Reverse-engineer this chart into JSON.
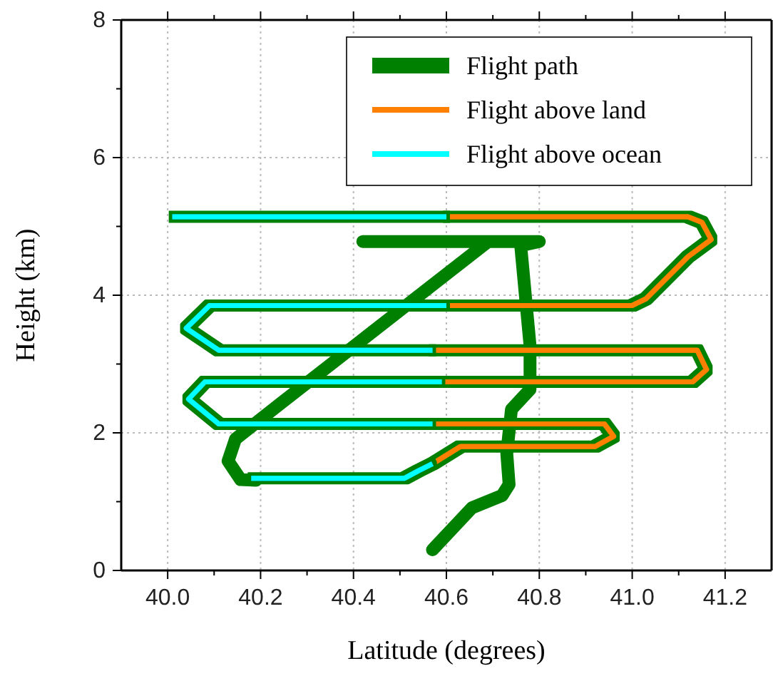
{
  "chart_data": {
    "type": "line",
    "xlabel": "Latitude (degrees)",
    "ylabel": "Height (km)",
    "xlim": [
      39.9,
      41.3
    ],
    "ylim": [
      0,
      8
    ],
    "xticks": [
      {
        "value": 40.0,
        "label": "40.0"
      },
      {
        "value": 40.1,
        "label": null
      },
      {
        "value": 40.2,
        "label": "40.2"
      },
      {
        "value": 40.3,
        "label": null
      },
      {
        "value": 40.4,
        "label": "40.4"
      },
      {
        "value": 40.5,
        "label": null
      },
      {
        "value": 40.6,
        "label": "40.6"
      },
      {
        "value": 40.7,
        "label": null
      },
      {
        "value": 40.8,
        "label": "40.8"
      },
      {
        "value": 40.9,
        "label": null
      },
      {
        "value": 41.0,
        "label": "41.0"
      },
      {
        "value": 41.1,
        "label": null
      },
      {
        "value": 41.2,
        "label": "41.2"
      }
    ],
    "yticks": [
      0,
      {
        "value": 1,
        "label": null
      },
      2,
      {
        "value": 3,
        "label": null
      },
      4,
      {
        "value": 5,
        "label": null
      },
      6,
      {
        "value": 7,
        "label": null
      },
      8
    ],
    "grid": true,
    "legend": "top right",
    "marker": "none",
    "line_style": "solid",
    "series": [
      {
        "name": "Flight path",
        "color": "#008000",
        "x": [
          40.57,
          40.655,
          40.72,
          40.735,
          40.73,
          40.74,
          40.78,
          40.78,
          40.76,
          40.8,
          40.42,
          null,
          40.69,
          40.24,
          40.146,
          40.13,
          40.157,
          40.19
        ],
        "values": [
          0.3,
          0.91,
          1.09,
          1.25,
          1.7,
          2.34,
          2.63,
          3.27,
          4.72,
          4.78,
          4.78,
          null,
          4.78,
          2.41,
          1.91,
          1.59,
          1.32,
          1.31
        ]
      },
      {
        "name": "Flight above land",
        "color": "#ff8000",
        "x": [
          40.57,
          40.63,
          40.92,
          40.96,
          40.94,
          40.57,
          null,
          40.59,
          41.13,
          41.16,
          41.14,
          40.57,
          null,
          40.6,
          41.0,
          41.03,
          41.12,
          41.17,
          41.15,
          41.12,
          40.6
        ],
        "values": [
          1.55,
          1.8,
          1.8,
          1.95,
          2.13,
          2.13,
          null,
          2.74,
          2.74,
          2.92,
          3.2,
          3.2,
          null,
          3.85,
          3.85,
          3.95,
          4.56,
          4.81,
          5.06,
          5.14,
          5.14
        ]
      },
      {
        "name": "Flight above ocean",
        "color": "#00ffff",
        "x": [
          40.18,
          40.51,
          40.54,
          40.57,
          null,
          40.57,
          40.11,
          40.045,
          40.08,
          40.59,
          null,
          40.57,
          40.11,
          40.04,
          40.09,
          40.6,
          null,
          40.6,
          40.01
        ],
        "values": [
          1.34,
          1.34,
          1.45,
          1.55,
          null,
          2.13,
          2.13,
          2.49,
          2.74,
          2.74,
          null,
          3.2,
          3.2,
          3.52,
          3.85,
          3.85,
          null,
          5.14,
          5.14
        ]
      }
    ]
  }
}
